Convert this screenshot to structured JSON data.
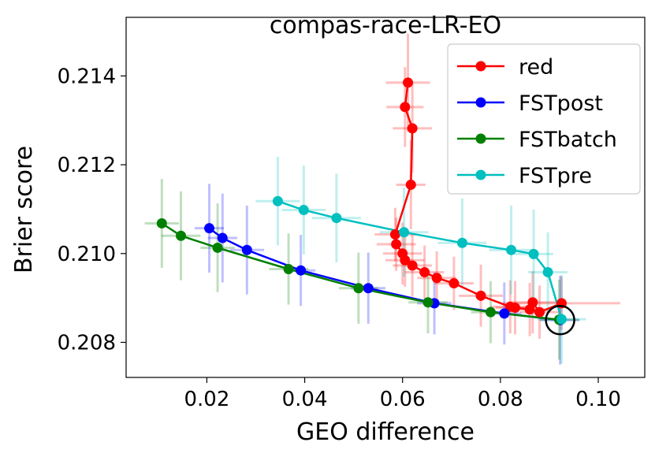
{
  "chart_data": {
    "type": "scatter",
    "title": "compas-race-LR-EO",
    "xlabel": "GEO difference",
    "ylabel": "Brier score",
    "xlim": [
      0.0035,
      0.1095
    ],
    "ylim": [
      0.20721,
      0.21532
    ],
    "xticks": [
      0.02,
      0.04,
      0.06,
      0.08,
      0.1
    ],
    "xtick_labels": [
      "0.02",
      "0.04",
      "0.06",
      "0.08",
      "0.10"
    ],
    "yticks": [
      0.208,
      0.21,
      0.212,
      0.214
    ],
    "ytick_labels": [
      "0.208",
      "0.210",
      "0.212",
      "0.214"
    ],
    "grid": false,
    "legend_position": "top-right",
    "highlight_point": {
      "x": 0.0922,
      "y": 0.2085
    },
    "series": [
      {
        "name": "red",
        "color": "#ff0000",
        "points": [
          {
            "x": 0.0611,
            "y": 0.21385,
            "xerr": 0.0045,
            "yerr": 0.0011
          },
          {
            "x": 0.0605,
            "y": 0.2133,
            "xerr": 0.0038,
            "yerr": 0.0009
          },
          {
            "x": 0.062,
            "y": 0.21282,
            "xerr": 0.004,
            "yerr": 0.001
          },
          {
            "x": 0.0617,
            "y": 0.21155,
            "xerr": 0.003,
            "yerr": 0.001
          },
          {
            "x": 0.0585,
            "y": 0.21043,
            "xerr": 0.0042,
            "yerr": 0.0006
          },
          {
            "x": 0.0587,
            "y": 0.21021,
            "xerr": 0.004,
            "yerr": 0.0006
          },
          {
            "x": 0.06,
            "y": 0.21,
            "xerr": 0.004,
            "yerr": 0.0007
          },
          {
            "x": 0.0605,
            "y": 0.20985,
            "xerr": 0.004,
            "yerr": 0.0006
          },
          {
            "x": 0.062,
            "y": 0.20973,
            "xerr": 0.004,
            "yerr": 0.0007
          },
          {
            "x": 0.0645,
            "y": 0.20958,
            "xerr": 0.004,
            "yerr": 0.0006
          },
          {
            "x": 0.067,
            "y": 0.20945,
            "xerr": 0.004,
            "yerr": 0.0006
          },
          {
            "x": 0.0705,
            "y": 0.20933,
            "xerr": 0.004,
            "yerr": 0.0006
          },
          {
            "x": 0.076,
            "y": 0.20905,
            "xerr": 0.0045,
            "yerr": 0.0007
          },
          {
            "x": 0.082,
            "y": 0.2088,
            "xerr": 0.004,
            "yerr": 0.0006
          },
          {
            "x": 0.083,
            "y": 0.20878,
            "xerr": 0.004,
            "yerr": 0.0006
          },
          {
            "x": 0.086,
            "y": 0.20874,
            "xerr": 0.004,
            "yerr": 0.0006
          },
          {
            "x": 0.0866,
            "y": 0.2089,
            "xerr": 0.005,
            "yerr": 0.0007
          },
          {
            "x": 0.088,
            "y": 0.20868,
            "xerr": 0.004,
            "yerr": 0.0006
          },
          {
            "x": 0.0925,
            "y": 0.20888,
            "xerr": 0.012,
            "yerr": 0.0006
          }
        ]
      },
      {
        "name": "FSTpost",
        "color": "#0000ff",
        "points": [
          {
            "x": 0.0205,
            "y": 0.21057,
            "xerr": 0.003,
            "yerr": 0.001
          },
          {
            "x": 0.0232,
            "y": 0.21035,
            "xerr": 0.003,
            "yerr": 0.001
          },
          {
            "x": 0.0282,
            "y": 0.21008,
            "xerr": 0.0035,
            "yerr": 0.001
          },
          {
            "x": 0.0392,
            "y": 0.20962,
            "xerr": 0.003,
            "yerr": 0.0008
          },
          {
            "x": 0.053,
            "y": 0.20922,
            "xerr": 0.0035,
            "yerr": 0.0008
          },
          {
            "x": 0.0665,
            "y": 0.20888,
            "xerr": 0.0035,
            "yerr": 0.0007
          },
          {
            "x": 0.0808,
            "y": 0.20865,
            "xerr": 0.0035,
            "yerr": 0.0007
          },
          {
            "x": 0.0922,
            "y": 0.2085,
            "xerr": 0.004,
            "yerr": 0.001
          }
        ]
      },
      {
        "name": "FSTbatch",
        "color": "#008000",
        "points": [
          {
            "x": 0.0108,
            "y": 0.21068,
            "xerr": 0.0035,
            "yerr": 0.001
          },
          {
            "x": 0.0147,
            "y": 0.2104,
            "xerr": 0.004,
            "yerr": 0.001
          },
          {
            "x": 0.0222,
            "y": 0.21013,
            "xerr": 0.0035,
            "yerr": 0.001
          },
          {
            "x": 0.0367,
            "y": 0.20965,
            "xerr": 0.004,
            "yerr": 0.0008
          },
          {
            "x": 0.051,
            "y": 0.20922,
            "xerr": 0.004,
            "yerr": 0.0008
          },
          {
            "x": 0.0652,
            "y": 0.2089,
            "xerr": 0.004,
            "yerr": 0.0007
          },
          {
            "x": 0.078,
            "y": 0.20868,
            "xerr": 0.004,
            "yerr": 0.0007
          },
          {
            "x": 0.092,
            "y": 0.20851,
            "xerr": 0.004,
            "yerr": 0.0009
          }
        ]
      },
      {
        "name": "FSTpre",
        "color": "#00bfbf",
        "points": [
          {
            "x": 0.0345,
            "y": 0.21118,
            "xerr": 0.0045,
            "yerr": 0.001
          },
          {
            "x": 0.0398,
            "y": 0.21098,
            "xerr": 0.0045,
            "yerr": 0.001
          },
          {
            "x": 0.0465,
            "y": 0.2108,
            "xerr": 0.005,
            "yerr": 0.001
          },
          {
            "x": 0.0603,
            "y": 0.21048,
            "xerr": 0.005,
            "yerr": 0.001
          },
          {
            "x": 0.0722,
            "y": 0.21024,
            "xerr": 0.005,
            "yerr": 0.001
          },
          {
            "x": 0.0822,
            "y": 0.21008,
            "xerr": 0.0045,
            "yerr": 0.001
          },
          {
            "x": 0.0868,
            "y": 0.20999,
            "xerr": 0.004,
            "yerr": 0.001
          },
          {
            "x": 0.0897,
            "y": 0.20958,
            "xerr": 0.004,
            "yerr": 0.0009
          },
          {
            "x": 0.0925,
            "y": 0.20852,
            "xerr": 0.005,
            "yerr": 0.001
          }
        ]
      }
    ]
  }
}
